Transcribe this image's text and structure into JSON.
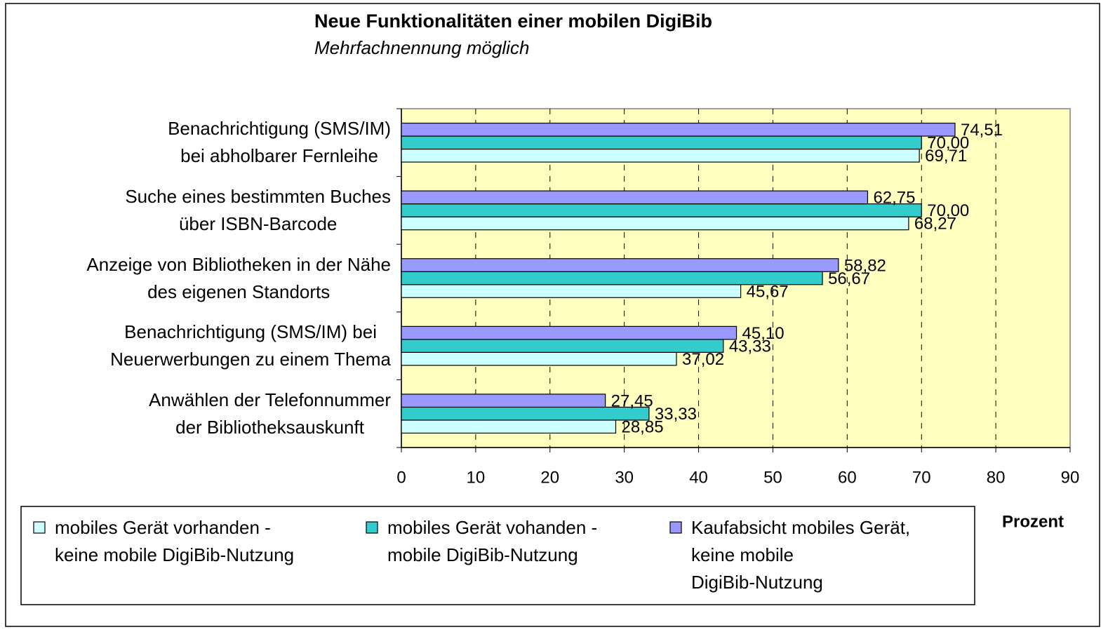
{
  "chart_data": {
    "type": "hbar",
    "title": "Neue Funktionalitäten einer mobilen DigiBib",
    "subtitle": "Mehrfachnennung möglich",
    "xlabel": "Prozent",
    "categories": [
      "Benachrichtigung (SMS/IM)\nbei abholbarer Fernleihe",
      "Suche eines bestimmten Buches\nüber ISBN-Barcode",
      "Anzeige von Bibliotheken in der Nähe\ndes eigenen Standorts",
      "Benachrichtigung (SMS/IM) bei\nNeuerwerbungen zu einem Thema",
      "Anwählen der Telefonnummer\nder Bibliotheksauskunft"
    ],
    "series": [
      {
        "name": "mobiles Gerät vorhanden -\nkeine mobile DigiBib-Nutzung",
        "color": "#ccffff",
        "values": [
          69.71,
          68.27,
          45.67,
          37.02,
          28.85
        ],
        "value_labels": [
          "69,71",
          "68,27",
          "45,67",
          "37,02",
          "28,85"
        ]
      },
      {
        "name": "mobiles Gerät vohanden -\nmobile DigiBib-Nutzung",
        "color": "#33cccc",
        "values": [
          70.0,
          70.0,
          56.67,
          43.33,
          33.33
        ],
        "value_labels": [
          "70,00",
          "70,00",
          "56,67",
          "43,33",
          "33,33"
        ]
      },
      {
        "name": "Kaufabsicht mobiles Gerät,\nkeine mobile\nDigiBib-Nutzung",
        "color": "#9999ff",
        "values": [
          74.51,
          62.75,
          58.82,
          45.1,
          27.45
        ],
        "value_labels": [
          "74,51",
          "62,75",
          "58,82",
          "45,10",
          "27,45"
        ]
      }
    ],
    "xlim": [
      0,
      90
    ],
    "xticks": [
      0,
      10,
      20,
      30,
      40,
      50,
      60,
      70,
      80,
      90
    ],
    "grid": true,
    "plot_background": "#ffffc0"
  }
}
